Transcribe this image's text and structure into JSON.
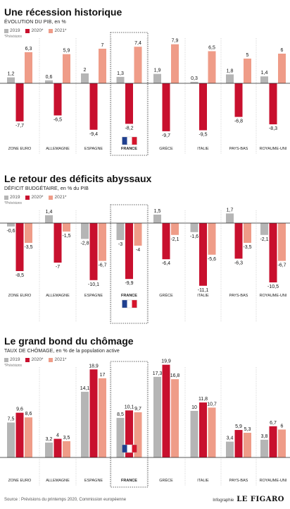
{
  "legend": {
    "items": [
      {
        "label": "2019",
        "color": "#b5b5b5"
      },
      {
        "label": "2020*",
        "color": "#c8102e"
      },
      {
        "label": "2021*",
        "color": "#ef9c88"
      }
    ],
    "note": "*Prévisions"
  },
  "chart_data": [
    {
      "type": "bar",
      "title": "Une récession historique",
      "subtitle": "ÉVOLUTION DU PIB, en %",
      "categories": [
        "ZONE EURO",
        "ALLEMAGNE",
        "ESPAGNE",
        "FRANCE",
        "GRÈCE",
        "ITALIE",
        "PAYS-BAS",
        "ROYAUME-UNI"
      ],
      "series": [
        {
          "name": "2019",
          "values": [
            1.2,
            0.6,
            2,
            1.3,
            1.9,
            0.3,
            1.8,
            1.4
          ],
          "labels": [
            "1,2",
            "0,6",
            "2",
            "1,3",
            "1,9",
            "0,3",
            "1,8",
            "1,4"
          ]
        },
        {
          "name": "2020*",
          "values": [
            -7.7,
            -6.5,
            -9.4,
            -8.2,
            -9.7,
            -9.5,
            -6.8,
            -8.3
          ],
          "labels": [
            "-7,7",
            "-6,5",
            "-9,4",
            "-8,2",
            "-9,7",
            "-9,5",
            "-6,8",
            "-8,3"
          ]
        },
        {
          "name": "2021*",
          "values": [
            6.3,
            5.9,
            7,
            7.4,
            7.9,
            6.5,
            5,
            6
          ],
          "labels": [
            "6,3",
            "5,9",
            "7",
            "7,4",
            "7,9",
            "6,5",
            "5",
            "6"
          ]
        }
      ],
      "highlight": "FRANCE"
    },
    {
      "type": "bar",
      "title": "Le retour des déficits abyssaux",
      "subtitle": "DÉFICIT BUDGÉTAIRE, en % du PIB",
      "categories": [
        "ZONE EURO",
        "ALLEMAGNE",
        "ESPAGNE",
        "FRANCE",
        "GRÈCE",
        "ITALIE",
        "PAYS-BAS",
        "ROYAUME-UNI"
      ],
      "series": [
        {
          "name": "2019",
          "values": [
            -0.6,
            1.4,
            -2.8,
            -3,
            1.5,
            -1.6,
            1.7,
            -2.1
          ],
          "labels": [
            "-0,6",
            "1,4",
            "-2,8",
            "-3",
            "1,5",
            "-1,6",
            "1,7",
            "-2,1"
          ]
        },
        {
          "name": "2020*",
          "values": [
            -8.5,
            -7,
            -10.1,
            -9.9,
            -6.4,
            -11.1,
            -6.3,
            -10.5
          ],
          "labels": [
            "-8,5",
            "-7",
            "-10,1",
            "-9,9",
            "-6,4",
            "-11,1",
            "-6,3",
            "-10,5"
          ]
        },
        {
          "name": "2021*",
          "values": [
            -3.5,
            -1.5,
            -6.7,
            -4,
            -2.1,
            -5.6,
            -3.5,
            -6.7
          ],
          "labels": [
            "-3,5",
            "-1,5",
            "-6,7",
            "-4",
            "-2,1",
            "-5,6",
            "-3,5",
            "-6,7"
          ]
        }
      ],
      "highlight": "FRANCE"
    },
    {
      "type": "bar",
      "title": "Le grand bond du chômage",
      "subtitle": "TAUX DE CHÔMAGE, en % de la population active",
      "categories": [
        "ZONE EURO",
        "ALLEMAGNE",
        "ESPAGNE",
        "FRANCE",
        "GRÈCE",
        "ITALIE",
        "PAYS-BAS",
        "ROYAUME-UNI"
      ],
      "series": [
        {
          "name": "2019",
          "values": [
            7.5,
            3.2,
            14.1,
            8.5,
            17.3,
            10,
            3.4,
            3.8
          ],
          "labels": [
            "7,5",
            "3,2",
            "14,1",
            "8,5",
            "17,3",
            "10",
            "3,4",
            "3,8"
          ]
        },
        {
          "name": "2020*",
          "values": [
            9.6,
            4,
            18.9,
            10.1,
            19.9,
            11.8,
            5.9,
            6.7
          ],
          "labels": [
            "9,6",
            "4",
            "18,9",
            "10,1",
            "19,9",
            "11,8",
            "5,9",
            "6,7"
          ]
        },
        {
          "name": "2021*",
          "values": [
            8.6,
            3.5,
            17,
            9.7,
            16.8,
            10.7,
            5.3,
            6
          ],
          "labels": [
            "8,6",
            "3,5",
            "17",
            "9,7",
            "16,8",
            "10,7",
            "5,3",
            "6"
          ]
        }
      ],
      "highlight": "FRANCE"
    }
  ],
  "footer": {
    "source": "Source : Prévisions du printemps 2020, Commission européenne",
    "credit_label": "Infographie",
    "brand": "LE FIGARO"
  }
}
